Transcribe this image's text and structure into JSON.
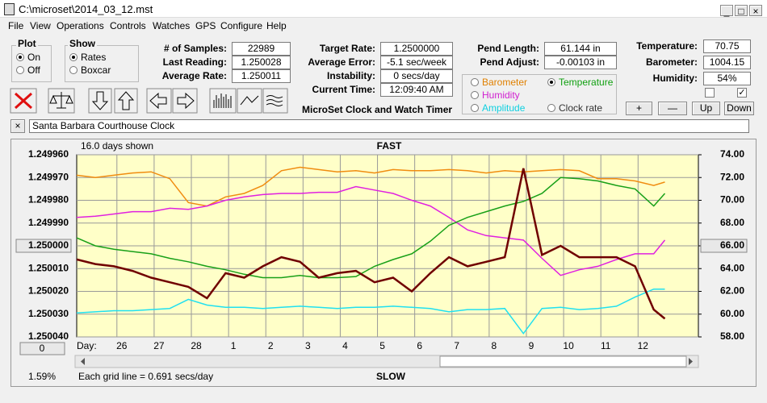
{
  "window": {
    "title": "C:\\microset\\2014_03_12.mst"
  },
  "menu": [
    "File",
    "View",
    "Operations",
    "Controls",
    "Watches",
    "GPS",
    "Configure",
    "Help"
  ],
  "plot_group": {
    "title": "Plot",
    "options": [
      "On",
      "Off"
    ]
  },
  "show_group": {
    "title": "Show",
    "options": [
      "Rates",
      "Boxcar"
    ]
  },
  "stats_left": [
    {
      "label": "# of Samples:",
      "value": "22989"
    },
    {
      "label": "Last Reading:",
      "value": "1.250028"
    },
    {
      "label": "Average Rate:",
      "value": "1.250011"
    }
  ],
  "stats_mid": [
    {
      "label": "Target Rate:",
      "value": "1.2500000"
    },
    {
      "label": "Average Error:",
      "value": "-5.1 sec/week"
    },
    {
      "label": "Instability:",
      "value": "0 secs/day"
    },
    {
      "label": "Current Time:",
      "value": "12:09:40 AM"
    }
  ],
  "pend": [
    {
      "label": "Pend Length:",
      "value": "61.144 in"
    },
    {
      "label": "Pend Adjust:",
      "value": "-0.00103 in"
    }
  ],
  "env": [
    {
      "label": "Temperature:",
      "value": "70.75"
    },
    {
      "label": "Barometer:",
      "value": "1004.15"
    },
    {
      "label": "Humidity:",
      "value": "54%"
    }
  ],
  "app_title": "MicroSet Clock and Watch Timer",
  "plot_select": [
    "Barometer",
    "Temperature",
    "Humidity",
    "Amplitude",
    "Clock rate"
  ],
  "buttons": [
    "+",
    "—",
    "Up",
    "Down"
  ],
  "watch_name": "Santa Barbara Courthouse Clock",
  "chart_data": {
    "type": "line",
    "annotations": {
      "days_shown": "16.0 days shown",
      "top": "FAST",
      "bottom": "SLOW",
      "day_label": "Day:",
      "grid_note": "Each grid line = 0.691 secs/day",
      "percent": "1.59%",
      "offset": "0"
    },
    "x": [
      0,
      0.5,
      1,
      1.5,
      2,
      2.5,
      3,
      3.5,
      4,
      4.5,
      5,
      5.5,
      6,
      6.5,
      7,
      7.5,
      8,
      8.5,
      9,
      9.5,
      10,
      10.5,
      11,
      11.5,
      12,
      12.5,
      13,
      13.5,
      14,
      14.5,
      15,
      15.5,
      15.8
    ],
    "xlim": [
      0,
      16.7
    ],
    "xticks": [
      {
        "value": 1.08,
        "label": "26"
      },
      {
        "value": 2.08,
        "label": "27"
      },
      {
        "value": 3.08,
        "label": "28"
      },
      {
        "value": 4.08,
        "label": "1"
      },
      {
        "value": 5.08,
        "label": "2"
      },
      {
        "value": 6.08,
        "label": "3"
      },
      {
        "value": 7.08,
        "label": "4"
      },
      {
        "value": 8.08,
        "label": "5"
      },
      {
        "value": 9.08,
        "label": "6"
      },
      {
        "value": 10.08,
        "label": "7"
      },
      {
        "value": 11.08,
        "label": "8"
      },
      {
        "value": 12.08,
        "label": "9"
      },
      {
        "value": 13.08,
        "label": "10"
      },
      {
        "value": 14.08,
        "label": "11"
      },
      {
        "value": 15.08,
        "label": "12"
      }
    ],
    "ylim": [
      1.25004,
      1.24996
    ],
    "yticks": [
      {
        "value": 1.24996,
        "label": "1.249960"
      },
      {
        "value": 1.24997,
        "label": "1.249970"
      },
      {
        "value": 1.24998,
        "label": "1.249980"
      },
      {
        "value": 1.24999,
        "label": "1.249990"
      },
      {
        "value": 1.25,
        "label": "1.250000"
      },
      {
        "value": 1.25001,
        "label": "1.250010"
      },
      {
        "value": 1.25002,
        "label": "1.250020"
      },
      {
        "value": 1.25003,
        "label": "1.250030"
      },
      {
        "value": 1.25004,
        "label": "1.250040"
      }
    ],
    "y2lim": [
      58,
      74
    ],
    "y2ticks": [
      {
        "value": 74,
        "label": "74.00"
      },
      {
        "value": 72,
        "label": "72.00"
      },
      {
        "value": 70,
        "label": "70.00"
      },
      {
        "value": 68,
        "label": "68.00"
      },
      {
        "value": 66,
        "label": "66.00"
      },
      {
        "value": 64,
        "label": "64.00"
      },
      {
        "value": 62,
        "label": "62.00"
      },
      {
        "value": 60,
        "label": "60.00"
      },
      {
        "value": 58,
        "label": "58.00"
      }
    ],
    "grid": true,
    "series": [
      {
        "color": "#f08c10",
        "axis": "y2",
        "values": [
          72.2,
          72.0,
          72.2,
          72.4,
          72.5,
          71.9,
          69.8,
          69.5,
          70.3,
          70.6,
          71.3,
          72.6,
          72.9,
          72.7,
          72.5,
          72.6,
          72.4,
          72.7,
          72.6,
          72.6,
          72.7,
          72.6,
          72.4,
          72.6,
          72.5,
          72.6,
          72.7,
          72.6,
          71.9,
          71.9,
          71.7,
          71.3,
          71.6
        ]
      },
      {
        "color": "#e020e0",
        "axis": "y2",
        "values": [
          68.5,
          68.6,
          68.8,
          69.0,
          69.0,
          69.3,
          69.2,
          69.5,
          70.0,
          70.3,
          70.5,
          70.6,
          70.6,
          70.7,
          70.7,
          71.2,
          70.9,
          70.6,
          70.0,
          69.5,
          68.5,
          67.4,
          66.9,
          66.7,
          66.5,
          64.9,
          63.4,
          63.9,
          64.2,
          64.8,
          65.3,
          65.3,
          66.5
        ]
      },
      {
        "color": "#18a018",
        "axis": "y2",
        "values": [
          66.7,
          66.0,
          65.7,
          65.5,
          65.3,
          64.9,
          64.6,
          64.2,
          63.9,
          63.5,
          63.2,
          63.2,
          63.4,
          63.2,
          63.2,
          63.3,
          64.2,
          64.8,
          65.3,
          66.4,
          67.8,
          68.5,
          69.0,
          69.5,
          69.9,
          70.6,
          72.0,
          71.9,
          71.7,
          71.3,
          71.0,
          69.5,
          70.6
        ]
      },
      {
        "color": "#20e0f0",
        "axis": "y2",
        "values": [
          60.1,
          60.2,
          60.3,
          60.3,
          60.4,
          60.5,
          61.3,
          60.8,
          60.6,
          60.6,
          60.5,
          60.6,
          60.7,
          60.6,
          60.5,
          60.6,
          60.6,
          60.7,
          60.6,
          60.5,
          60.2,
          60.4,
          60.4,
          60.5,
          58.3,
          60.5,
          60.6,
          60.4,
          60.5,
          60.7,
          61.5,
          62.2,
          62.2
        ]
      },
      {
        "color": "#700000",
        "values": [
          1.250006,
          1.250008,
          1.250009,
          1.250011,
          1.250014,
          1.250016,
          1.250018,
          1.250023,
          1.250012,
          1.250014,
          1.250009,
          1.250005,
          1.250007,
          1.250014,
          1.250012,
          1.250011,
          1.250016,
          1.250014,
          1.25002,
          1.250012,
          1.250005,
          1.250009,
          1.250007,
          1.250005,
          1.249966,
          1.250004,
          1.25,
          1.250005,
          1.250005,
          1.250005,
          1.250009,
          1.250028,
          1.250032
        ]
      }
    ]
  }
}
